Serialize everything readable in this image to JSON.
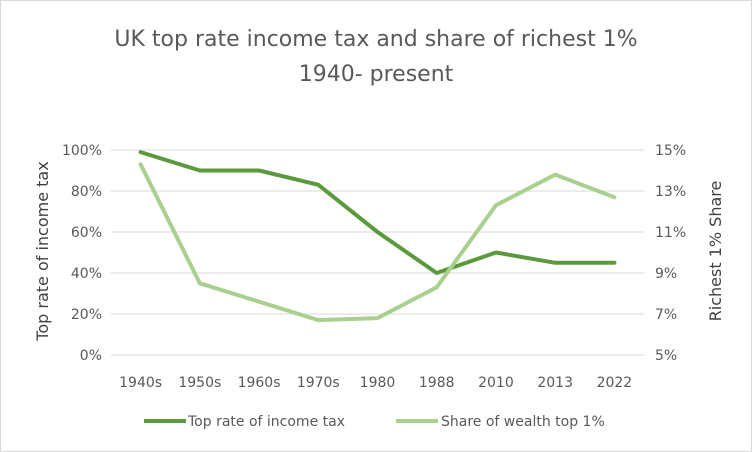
{
  "chart_data": {
    "type": "line",
    "title_line1": "UK top rate income tax and share of richest 1%",
    "title_line2": "1940- present",
    "categories": [
      "1940s",
      "1950s",
      "1960s",
      "1970s",
      "1980",
      "1988",
      "2010",
      "2013",
      "2022"
    ],
    "ylabel_left": "Top rate of income tax",
    "ylabel_right": "Richest 1% Share",
    "left_axis": {
      "min": 0,
      "max": 100,
      "ticks": [
        "0%",
        "20%",
        "40%",
        "60%",
        "80%",
        "100%"
      ]
    },
    "right_axis": {
      "min": 5,
      "max": 15,
      "ticks": [
        "5%",
        "7%",
        "9%",
        "11%",
        "13%",
        "15%"
      ]
    },
    "series": [
      {
        "name": "Top rate of income tax",
        "axis": "left",
        "color": "#5b9a3c",
        "values": [
          99,
          90,
          90,
          83,
          60,
          40,
          50,
          45,
          45
        ]
      },
      {
        "name": "Share of wealth top 1%",
        "axis": "right",
        "color": "#a9d08e",
        "values": [
          14.3,
          8.5,
          7.6,
          6.7,
          6.8,
          8.3,
          12.3,
          13.8,
          12.7
        ]
      }
    ],
    "grid": true,
    "legend_position": "bottom"
  }
}
